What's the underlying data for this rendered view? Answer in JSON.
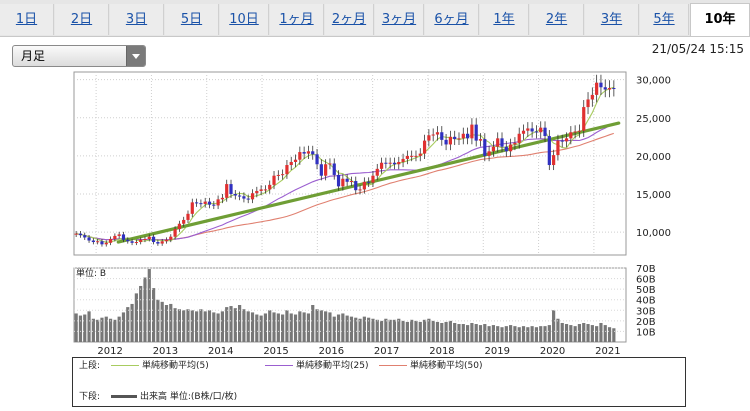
{
  "tabs": [
    {
      "label": "1日",
      "active": false
    },
    {
      "label": "2日",
      "active": false
    },
    {
      "label": "3日",
      "active": false
    },
    {
      "label": "5日",
      "active": false
    },
    {
      "label": "10日",
      "active": false
    },
    {
      "label": "1ヶ月",
      "active": false
    },
    {
      "label": "2ヶ月",
      "active": false
    },
    {
      "label": "3ヶ月",
      "active": false
    },
    {
      "label": "6ヶ月",
      "active": false
    },
    {
      "label": "1年",
      "active": false
    },
    {
      "label": "2年",
      "active": false
    },
    {
      "label": "3年",
      "active": false
    },
    {
      "label": "5年",
      "active": false
    },
    {
      "label": "10年",
      "active": true
    }
  ],
  "period_select": {
    "value": "月足"
  },
  "timestamp": "21/05/24 15:15",
  "colors": {
    "up": "#e03030",
    "down": "#3030c0",
    "ma5": "#a8cc60",
    "ma25": "#9b5fd0",
    "ma50": "#e08070",
    "trend": "#6f9e35",
    "volume": "#777777"
  },
  "chart_data": {
    "type": "candlestick",
    "price_axis": {
      "ticks": [
        10000,
        15000,
        20000,
        25000,
        30000
      ],
      "tick_labels": [
        "10,000",
        "15,000",
        "20,000",
        "25,000",
        "30,000"
      ],
      "range": [
        7000,
        31000
      ]
    },
    "volume_axis": {
      "unit_label": "単位: B",
      "ticks": [
        10,
        20,
        30,
        40,
        50,
        60,
        70
      ],
      "tick_labels": [
        "10B",
        "20B",
        "30B",
        "40B",
        "50B",
        "60B",
        "70B"
      ],
      "range": [
        0,
        70
      ]
    },
    "x_tick_labels": [
      "2012",
      "2013",
      "2014",
      "2015",
      "2016",
      "2017",
      "2018",
      "2019",
      "2020",
      "2021"
    ],
    "start_year": 2011.6,
    "end_year": 2021.4,
    "close": [
      9800,
      9600,
      9300,
      8900,
      8700,
      8800,
      8400,
      8600,
      9100,
      9500,
      9700,
      9000,
      8800,
      8600,
      8700,
      9000,
      9100,
      9400,
      8700,
      8500,
      8800,
      9000,
      9400,
      10400,
      11100,
      11600,
      12400,
      13900,
      13800,
      13700,
      14000,
      13600,
      13500,
      14300,
      14500,
      16300,
      15000,
      14800,
      14700,
      14400,
      14300,
      15100,
      15400,
      15600,
      15600,
      16200,
      17400,
      17500,
      17600,
      18800,
      19200,
      19500,
      20500,
      20300,
      20600,
      20200,
      18900,
      17400,
      18900,
      19000,
      17500,
      16000,
      17000,
      16600,
      16700,
      15500,
      15600,
      16600,
      16500,
      17400,
      18300,
      19100,
      19000,
      19100,
      18900,
      19200,
      19600,
      20000,
      20000,
      20000,
      20300,
      22000,
      22700,
      22800,
      23100,
      22100,
      21500,
      22500,
      22200,
      22300,
      22900,
      22300,
      24100,
      22000,
      22200,
      20000,
      20600,
      21200,
      22300,
      21200,
      20600,
      21500,
      21700,
      22900,
      23300,
      23600,
      23200,
      23100,
      23700,
      22600,
      18800,
      20100,
      22000,
      21900,
      22300,
      23100,
      23200,
      23300,
      26400,
      27400,
      28000,
      29600,
      29000,
      28700,
      28900,
      28800
    ],
    "volume": [
      27,
      25,
      26,
      29,
      22,
      21,
      23,
      24,
      22,
      21,
      24,
      28,
      33,
      36,
      46,
      53,
      61,
      69,
      51,
      40,
      38,
      35,
      36,
      32,
      31,
      30,
      31,
      30,
      29,
      31,
      29,
      30,
      28,
      27,
      29,
      33,
      34,
      32,
      35,
      31,
      29,
      28,
      26,
      25,
      27,
      30,
      28,
      27,
      26,
      30,
      27,
      26,
      29,
      28,
      27,
      35,
      31,
      30,
      29,
      28,
      24,
      26,
      27,
      25,
      24,
      23,
      22,
      24,
      23,
      22,
      21,
      20,
      22,
      21,
      21,
      22,
      20,
      19,
      21,
      20,
      19,
      21,
      22,
      20,
      19,
      18,
      19,
      20,
      18,
      17,
      17,
      16,
      18,
      17,
      16,
      17,
      15,
      16,
      15,
      14,
      15,
      16,
      15,
      14,
      15,
      14,
      15,
      14,
      15,
      15,
      16,
      30,
      22,
      18,
      17,
      16,
      15,
      17,
      18,
      17,
      16,
      15,
      18,
      16,
      14,
      13
    ],
    "series": [
      {
        "name": "単純移動平均(5)",
        "role": "ma5"
      },
      {
        "name": "単純移動平均(25)",
        "role": "ma25"
      },
      {
        "name": "単純移動平均(50)",
        "role": "ma50"
      }
    ],
    "trendline": {
      "from": [
        2012.4,
        8700
      ],
      "to": [
        2021.45,
        24300
      ]
    }
  },
  "legend": {
    "upper_label": "上段:",
    "lower_label": "下段:",
    "ma5": "単純移動平均(5)",
    "ma25": "単純移動平均(25)",
    "ma50": "単純移動平均(50)",
    "volume": "出来高 単位:(B株/口/枚)"
  }
}
